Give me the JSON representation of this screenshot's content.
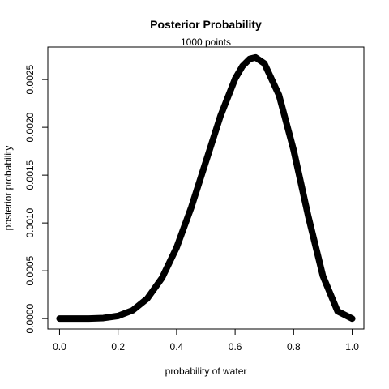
{
  "chart_data": {
    "type": "line",
    "title": "Posterior Probability",
    "subtitle": "1000  points",
    "xlabel": "probability of water",
    "ylabel": "posterior probability",
    "color": "#000000",
    "x": [
      0,
      0.05,
      0.1,
      0.15,
      0.2,
      0.25,
      0.3,
      0.35,
      0.4,
      0.45,
      0.5,
      0.55,
      0.6,
      0.625,
      0.65,
      0.67,
      0.7,
      0.75,
      0.8,
      0.85,
      0.9,
      0.95,
      1
    ],
    "y": [
      0,
      1e-08,
      6e-07,
      5.9e-06,
      2.75e-05,
      8.65e-05,
      0.00021,
      0.000424,
      0.000743,
      0.001161,
      0.001641,
      0.002119,
      0.002508,
      0.00264,
      0.002716,
      0.002731,
      0.002668,
      0.002336,
      0.001762,
      0.001069,
      0.000446,
      7.7e-05,
      0
    ],
    "xlim": [
      -0.04,
      1.04
    ],
    "ylim": [
      -0.000109,
      0.00284
    ],
    "xticks": [
      {
        "value": 0,
        "label": "0.0"
      },
      {
        "value": 0.2,
        "label": "0.2"
      },
      {
        "value": 0.4,
        "label": "0.4"
      },
      {
        "value": 0.6,
        "label": "0.6"
      },
      {
        "value": 0.8,
        "label": "0.8"
      },
      {
        "value": 1,
        "label": "1.0"
      }
    ],
    "yticks": [
      {
        "value": 0,
        "label": "0.0000"
      },
      {
        "value": 0.0005,
        "label": "0.0005"
      },
      {
        "value": 0.001,
        "label": "0.0010"
      },
      {
        "value": 0.0015,
        "label": "0.0015"
      },
      {
        "value": 0.002,
        "label": "0.0020"
      },
      {
        "value": 0.0025,
        "label": "0.0025"
      }
    ]
  }
}
